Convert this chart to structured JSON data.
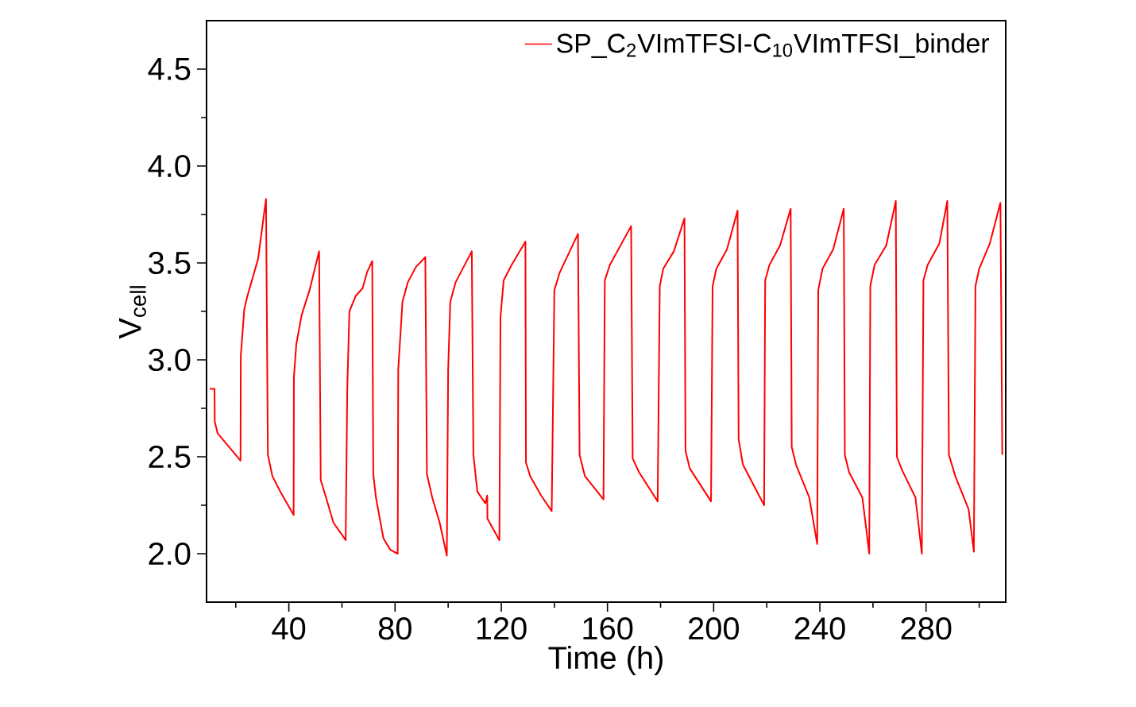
{
  "chart_data": {
    "type": "line",
    "xlabel": "Time (h)",
    "ylabel": "V$_{cell}$",
    "legend": "top right",
    "grid": false,
    "xlim": [
      9,
      310
    ],
    "ylim": [
      1.75,
      4.75
    ],
    "xticks": [
      {
        "value": 20,
        "label": null
      },
      40,
      {
        "value": 60,
        "label": null
      },
      80,
      {
        "value": 100,
        "label": null
      },
      120,
      {
        "value": 140,
        "label": null
      },
      160,
      {
        "value": 180,
        "label": null
      },
      200,
      {
        "value": 220,
        "label": null
      },
      240,
      {
        "value": 260,
        "label": null
      },
      280,
      {
        "value": 300,
        "label": null
      }
    ],
    "yticks": [
      {
        "value": 2,
        "label": "2.0"
      },
      {
        "value": 2.25,
        "label": null
      },
      {
        "value": 2.5,
        "label": "2.5"
      },
      {
        "value": 2.75,
        "label": null
      },
      {
        "value": 3,
        "label": "3.0"
      },
      {
        "value": 3.25,
        "label": null
      },
      {
        "value": 3.5,
        "label": "3.5"
      },
      {
        "value": 3.75,
        "label": null
      },
      {
        "value": 4,
        "label": "4.0"
      },
      {
        "value": 4.25,
        "label": null
      },
      {
        "value": 4.5,
        "label": "4.5"
      }
    ],
    "series": [
      {
        "name": "SP_C$_{2}$VImTFSI-C$_{10}$VImTFSI_binder",
        "color": "#ff0000",
        "x": [
          10.2,
          12.0,
          12.1,
          13.2,
          21.8,
          21.9,
          23.2,
          24.4,
          28.4,
          31.4,
          32.1,
          33.8,
          36.8,
          41.8,
          41.9,
          42.8,
          44.8,
          47.8,
          51.4,
          52.0,
          54.0,
          56.8,
          61.4,
          62.0,
          62.8,
          65.2,
          67.8,
          69.4,
          71.4,
          71.8,
          72.8,
          75.6,
          78.2,
          81.0,
          81.2,
          82.8,
          84.8,
          87.9,
          91.4,
          92.0,
          94.0,
          96.8,
          99.5,
          100.0,
          100.8,
          102.8,
          108.9,
          109.5,
          111.0,
          114.0,
          114.7,
          114.8,
          119.3,
          119.7,
          120.9,
          123.9,
          129.1,
          129.3,
          130.9,
          135.0,
          139.0,
          140.0,
          142.0,
          148.9,
          149.5,
          151.5,
          158.5,
          159.0,
          160.9,
          168.9,
          169.5,
          171.9,
          178.9,
          179.7,
          181.0,
          185.0,
          189.0,
          189.4,
          191.0,
          199.0,
          199.6,
          201.0,
          205.0,
          209.0,
          209.4,
          211.0,
          219.0,
          219.4,
          221.0,
          225.0,
          229.0,
          229.4,
          231.0,
          236.0,
          239.0,
          239.4,
          241.0,
          245.0,
          249.0,
          249.4,
          251.0,
          256.0,
          258.6,
          259.0,
          260.6,
          265.0,
          268.6,
          269.0,
          271.0,
          276.0,
          278.4,
          279.0,
          280.6,
          285.0,
          288.0,
          288.6,
          291.0,
          296.0,
          298.0,
          298.6,
          300.0,
          304.0,
          308.0,
          308.7
        ],
        "values": [
          2.85,
          2.85,
          2.68,
          2.62,
          2.48,
          3.02,
          3.26,
          3.33,
          3.52,
          3.83,
          2.51,
          2.4,
          2.32,
          2.2,
          2.91,
          3.08,
          3.23,
          3.36,
          3.56,
          2.38,
          2.29,
          2.16,
          2.07,
          2.85,
          3.25,
          3.33,
          3.37,
          3.45,
          3.51,
          2.41,
          2.29,
          2.08,
          2.02,
          2.0,
          2.95,
          3.3,
          3.4,
          3.48,
          3.53,
          2.41,
          2.29,
          2.16,
          1.99,
          2.95,
          3.3,
          3.4,
          3.56,
          2.51,
          2.32,
          2.26,
          2.3,
          2.18,
          2.07,
          3.22,
          3.41,
          3.49,
          3.61,
          2.47,
          2.4,
          2.3,
          2.22,
          3.36,
          3.45,
          3.65,
          2.51,
          2.4,
          2.28,
          3.41,
          3.49,
          3.69,
          2.49,
          2.42,
          2.27,
          3.38,
          3.47,
          3.56,
          3.73,
          2.53,
          2.44,
          2.27,
          3.38,
          3.47,
          3.57,
          3.77,
          2.59,
          2.46,
          2.25,
          3.41,
          3.49,
          3.59,
          3.78,
          2.55,
          2.46,
          2.29,
          2.05,
          3.36,
          3.47,
          3.57,
          3.78,
          2.51,
          2.42,
          2.29,
          2.0,
          3.38,
          3.49,
          3.59,
          3.82,
          2.5,
          2.43,
          2.29,
          2.0,
          3.41,
          3.49,
          3.6,
          3.82,
          2.51,
          2.4,
          2.23,
          2.01,
          3.38,
          3.47,
          3.6,
          3.81,
          2.51
        ]
      }
    ]
  }
}
